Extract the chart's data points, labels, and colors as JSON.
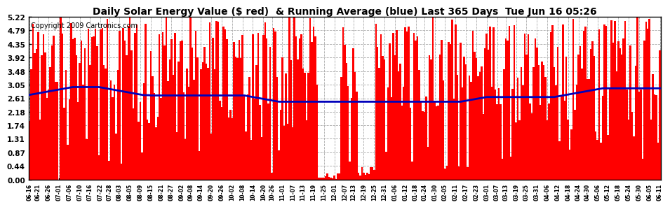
{
  "title": "Daily Solar Energy Value ($ red)  & Running Average (blue) Last 365 Days  Tue Jun 16 05:26",
  "copyright": "Copyright 2009 Cartronics.com",
  "yticks": [
    0.0,
    0.44,
    0.87,
    1.31,
    1.74,
    2.18,
    2.61,
    3.05,
    3.48,
    3.92,
    4.35,
    4.79,
    5.22
  ],
  "ymax": 5.22,
  "bar_color": "#ff0000",
  "line_color": "#0000bb",
  "bg_color": "#ffffff",
  "grid_color": "#aaaaaa",
  "title_fontsize": 10,
  "copyright_fontsize": 7,
  "xlabel_fontsize": 5.5,
  "ylabel_fontsize": 7.5,
  "x_labels": [
    "06-16",
    "06-21",
    "06-26",
    "07-01",
    "07-06",
    "07-10",
    "07-16",
    "07-22",
    "07-28",
    "08-03",
    "08-05",
    "08-09",
    "08-15",
    "08-21",
    "08-27",
    "09-02",
    "09-08",
    "09-14",
    "09-20",
    "09-26",
    "10-02",
    "10-08",
    "10-14",
    "10-20",
    "10-26",
    "11-01",
    "11-07",
    "11-13",
    "11-19",
    "11-25",
    "12-01",
    "12-07",
    "12-13",
    "12-19",
    "12-25",
    "12-31",
    "01-06",
    "01-12",
    "01-18",
    "01-24",
    "01-30",
    "02-05",
    "02-11",
    "02-17",
    "02-23",
    "03-01",
    "03-07",
    "03-13",
    "03-19",
    "03-25",
    "03-31",
    "04-06",
    "04-12",
    "04-18",
    "04-24",
    "04-30",
    "05-06",
    "05-12",
    "05-18",
    "05-24",
    "05-30",
    "06-05",
    "06-11"
  ],
  "avg_values": [
    2.72,
    2.73,
    2.74,
    2.75,
    2.76,
    2.77,
    2.78,
    2.79,
    2.8,
    2.81,
    2.82,
    2.83,
    2.84,
    2.85,
    2.86,
    2.87,
    2.88,
    2.89,
    2.9,
    2.91,
    2.92,
    2.93,
    2.94,
    2.95,
    2.96,
    2.97,
    2.97,
    2.97,
    2.97,
    2.97,
    2.97,
    2.97,
    2.97,
    2.97,
    2.97,
    2.97,
    2.97,
    2.97,
    2.97,
    2.97,
    2.97,
    2.96,
    2.95,
    2.94,
    2.93,
    2.92,
    2.91,
    2.9,
    2.89,
    2.88,
    2.87,
    2.86,
    2.85,
    2.84,
    2.83,
    2.82,
    2.81,
    2.8,
    2.79,
    2.78,
    2.77,
    2.76,
    2.75,
    2.74,
    2.73,
    2.72,
    2.71,
    2.71,
    2.71,
    2.71,
    2.7,
    2.7,
    2.7,
    2.7,
    2.7,
    2.7,
    2.7,
    2.7,
    2.7,
    2.7,
    2.7,
    2.7,
    2.7,
    2.7,
    2.7,
    2.7,
    2.7,
    2.7,
    2.7,
    2.7,
    2.7,
    2.7,
    2.7,
    2.7,
    2.7,
    2.7,
    2.7,
    2.7,
    2.7,
    2.7,
    2.7,
    2.7,
    2.7,
    2.7,
    2.7,
    2.7,
    2.7,
    2.7,
    2.7,
    2.7,
    2.7,
    2.7,
    2.7,
    2.7,
    2.7,
    2.7,
    2.7,
    2.7,
    2.7,
    2.7,
    2.7,
    2.7,
    2.7,
    2.7,
    2.7,
    2.69,
    2.68,
    2.67,
    2.66,
    2.65,
    2.64,
    2.63,
    2.62,
    2.61,
    2.6,
    2.59,
    2.58,
    2.57,
    2.56,
    2.55,
    2.54,
    2.53,
    2.52,
    2.51,
    2.5,
    2.5,
    2.5,
    2.5,
    2.5,
    2.5,
    2.5,
    2.5,
    2.5,
    2.5,
    2.5,
    2.5,
    2.5,
    2.5,
    2.5,
    2.5,
    2.5,
    2.5,
    2.5,
    2.5,
    2.5,
    2.5,
    2.5,
    2.5,
    2.5,
    2.5,
    2.5,
    2.5,
    2.5,
    2.5,
    2.5,
    2.5,
    2.5,
    2.5,
    2.5,
    2.5,
    2.5,
    2.5,
    2.5,
    2.5,
    2.5,
    2.5,
    2.5,
    2.5,
    2.5,
    2.5,
    2.5,
    2.5,
    2.5,
    2.5,
    2.5,
    2.5,
    2.5,
    2.5,
    2.5,
    2.5,
    2.5,
    2.5,
    2.5,
    2.5,
    2.5,
    2.5,
    2.5,
    2.5,
    2.5,
    2.5,
    2.5,
    2.5,
    2.5,
    2.5,
    2.5,
    2.5,
    2.5,
    2.5,
    2.5,
    2.5,
    2.5,
    2.5,
    2.5,
    2.5,
    2.5,
    2.5,
    2.5,
    2.5,
    2.5,
    2.5,
    2.5,
    2.5,
    2.5,
    2.5,
    2.5,
    2.5,
    2.5,
    2.5,
    2.5,
    2.5,
    2.5,
    2.5,
    2.5,
    2.5,
    2.5,
    2.5,
    2.5,
    2.5,
    2.5,
    2.5,
    2.51,
    2.52,
    2.53,
    2.54,
    2.55,
    2.56,
    2.57,
    2.58,
    2.59,
    2.6,
    2.61,
    2.62,
    2.63,
    2.64,
    2.65,
    2.65,
    2.65,
    2.65,
    2.65,
    2.65,
    2.65,
    2.65,
    2.65,
    2.65,
    2.65,
    2.65,
    2.65,
    2.65,
    2.65,
    2.65,
    2.65,
    2.65,
    2.65,
    2.65,
    2.65,
    2.65,
    2.65,
    2.65,
    2.65,
    2.65,
    2.65,
    2.65,
    2.65,
    2.65,
    2.65,
    2.65,
    2.65,
    2.65,
    2.65,
    2.65,
    2.65,
    2.65,
    2.65,
    2.65,
    2.66,
    2.67,
    2.68,
    2.69,
    2.7,
    2.71,
    2.72,
    2.73,
    2.74,
    2.75,
    2.76,
    2.77,
    2.78,
    2.79,
    2.8,
    2.81,
    2.82,
    2.83,
    2.84,
    2.85,
    2.86,
    2.87,
    2.88,
    2.89,
    2.9,
    2.91,
    2.92,
    2.93,
    2.93,
    2.93,
    2.93,
    2.93,
    2.93,
    2.93,
    2.93,
    2.93,
    2.93,
    2.93,
    2.93,
    2.93,
    2.93,
    2.93,
    2.93,
    2.93,
    2.93,
    2.93,
    2.93,
    2.93,
    2.93,
    2.93,
    2.93,
    2.93,
    2.93,
    2.93,
    2.93,
    2.93,
    2.93,
    2.93,
    2.93,
    2.93,
    2.93,
    2.93
  ]
}
